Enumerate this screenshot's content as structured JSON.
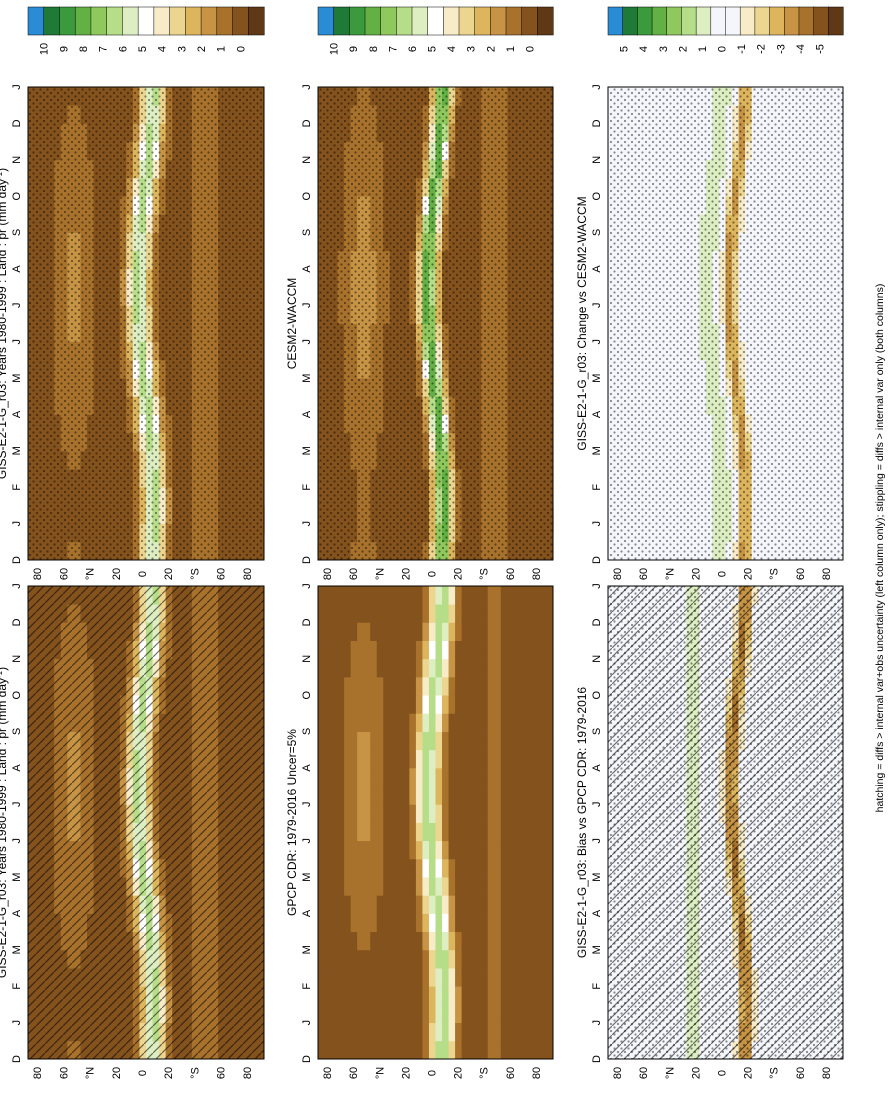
{
  "figure": {
    "footnote": "hatching = diffs > internal var+obs uncertainty (left column only); stippling = diffs > internal var only (both columns)",
    "orientation": "rotated 90 degrees counter-clockwise"
  },
  "scales": {
    "abs": {
      "labels": [
        "10",
        "9",
        "8",
        "7",
        "6",
        "5",
        "4",
        "3",
        "2",
        "1",
        "0"
      ],
      "colors": [
        "#2b8cd6",
        "#1e7a36",
        "#3a9a3c",
        "#63b044",
        "#8fc85c",
        "#b6dd87",
        "#ddeec2",
        "#ffffff",
        "#f7ebc8",
        "#ecd58f",
        "#dcb55d",
        "#c69444",
        "#a8722c",
        "#84521d",
        "#5f3815"
      ]
    },
    "diff": {
      "labels": [
        "5",
        "4",
        "3",
        "2",
        "1",
        "0",
        "-1",
        "-2",
        "-3",
        "-4",
        "-5"
      ],
      "colors": [
        "#2b8cd6",
        "#1e7a36",
        "#3a9a3c",
        "#63b044",
        "#8fc85c",
        "#b6dd87",
        "#ddeec2",
        "#f4f6fb",
        "#f4f6fb",
        "#f7ebc8",
        "#ecd58f",
        "#dcb55d",
        "#c69444",
        "#a8722c",
        "#84521d",
        "#5f3815"
      ]
    }
  },
  "axes": {
    "months": [
      "D",
      "J",
      "F",
      "M",
      "A",
      "M",
      "J",
      "J",
      "A",
      "S",
      "O",
      "N",
      "D",
      "J"
    ],
    "lat_ticks": [
      "80",
      "60",
      "°N",
      "20",
      "0",
      "20",
      "°S",
      "60",
      "80"
    ]
  },
  "chart_data": [
    {
      "type": "heatmap",
      "panel": "top-left",
      "title": "GISS-E2-1-G_r03: Years 1980-1999 : Land : pr (mm day",
      "title_sup": "-1",
      "title_close": ")",
      "field": "model",
      "scale": "abs",
      "overlay": "hatching",
      "xlabel": "month (D..J)",
      "ylabel": "latitude",
      "ylim": [
        -90,
        90
      ]
    },
    {
      "type": "heatmap",
      "panel": "middle-left",
      "title": "GPCP CDR: 1979-2016 Uncer=5%",
      "field": "obs",
      "scale": "abs",
      "overlay": "none",
      "ylim": [
        -90,
        90
      ]
    },
    {
      "type": "heatmap",
      "panel": "bottom-left",
      "title": "GISS-E2-1-G_r03: Bias vs GPCP CDR: 1979-2016",
      "field": "bias",
      "scale": "diff",
      "overlay": "hatching+stippling",
      "ylim": [
        -90,
        90
      ]
    },
    {
      "type": "heatmap",
      "panel": "top-right",
      "title": "GISS-E2-1-G_r03: Years 1980-1999 : Land : pr (mm day",
      "title_sup": "-1",
      "title_close": ")",
      "field": "model",
      "scale": "abs",
      "overlay": "stippling",
      "ylim": [
        -90,
        90
      ]
    },
    {
      "type": "heatmap",
      "panel": "middle-right",
      "title": "CESM2-WACCM",
      "field": "cesm",
      "scale": "abs",
      "overlay": "stippling",
      "ylim": [
        -90,
        90
      ]
    },
    {
      "type": "heatmap",
      "panel": "bottom-right",
      "title": "GISS-E2-1-G_r03: Change vs CESM2-WACCM",
      "field": "change",
      "scale": "diff",
      "overlay": "stippling",
      "ylim": [
        -90,
        90
      ]
    }
  ]
}
